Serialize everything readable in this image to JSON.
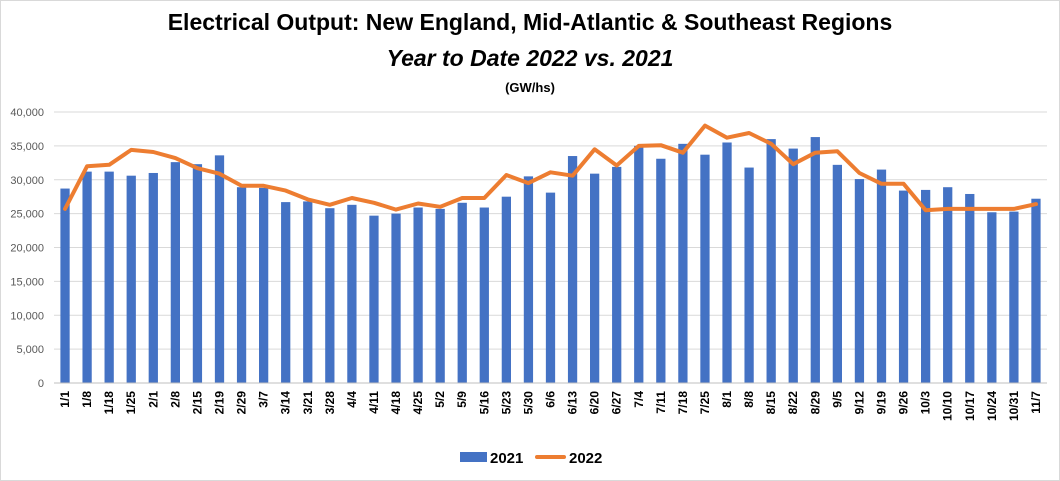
{
  "chart_data": {
    "type": "bar",
    "title": "Electrical Output:  New England, Mid-Atlantic & Southeast Regions",
    "subtitle": "Year to Date 2022 vs. 2021",
    "unit_label": "(GW/hs)",
    "ylim": [
      0,
      40000
    ],
    "y_ticks": [
      "0",
      "5,000",
      "10,000",
      "15,000",
      "20,000",
      "25,000",
      "30,000",
      "35,000",
      "40,000"
    ],
    "y_tick_values": [
      0,
      5000,
      10000,
      15000,
      20000,
      25000,
      30000,
      35000,
      40000
    ],
    "grid": true,
    "legend_position": "bottom",
    "categories": [
      "1/1",
      "1/8",
      "1/18",
      "1/25",
      "2/1",
      "2/8",
      "2/15",
      "2/19",
      "2/29",
      "3/7",
      "3/14",
      "3/21",
      "3/28",
      "4/4",
      "4/11",
      "4/18",
      "4/25",
      "5/2",
      "5/9",
      "5/16",
      "5/23",
      "5/30",
      "6/6",
      "6/13",
      "6/20",
      "6/27",
      "7/4",
      "7/11",
      "7/18",
      "7/25",
      "8/1",
      "8/8",
      "8/15",
      "8/22",
      "8/29",
      "9/5",
      "9/12",
      "9/19",
      "9/26",
      "10/3",
      "10/10",
      "10/17",
      "10/24",
      "10/31",
      "11/7"
    ],
    "series": [
      {
        "name": "2021",
        "type": "bar",
        "color": "#4472c4",
        "values": [
          28700,
          31200,
          31200,
          30600,
          31000,
          32600,
          32300,
          33600,
          28900,
          28800,
          26700,
          26800,
          25800,
          26300,
          24700,
          25000,
          25900,
          25700,
          26600,
          25900,
          27500,
          30500,
          28100,
          33500,
          30900,
          31900,
          35000,
          33100,
          35300,
          33700,
          35500,
          31800,
          36000,
          34600,
          36300,
          32200,
          30100,
          31500,
          28400,
          28500,
          28900,
          27900,
          25200,
          25300,
          27200
        ]
      },
      {
        "name": "2022",
        "type": "line",
        "color": "#ed7d31",
        "values": [
          25700,
          32000,
          32200,
          34400,
          34100,
          33200,
          31700,
          30900,
          29100,
          29100,
          28400,
          27100,
          26300,
          27300,
          26600,
          25600,
          26500,
          26000,
          27300,
          27300,
          30700,
          29500,
          31100,
          30600,
          34500,
          32100,
          35000,
          35100,
          34000,
          38000,
          36200,
          36900,
          35300,
          32300,
          34000,
          34200,
          31000,
          29400,
          29400,
          25500,
          25700,
          25700,
          25700,
          25700,
          26400
        ]
      }
    ]
  }
}
